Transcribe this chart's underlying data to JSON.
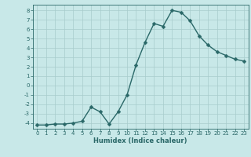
{
  "x": [
    0,
    1,
    2,
    3,
    4,
    5,
    6,
    7,
    8,
    9,
    10,
    11,
    12,
    13,
    14,
    15,
    16,
    17,
    18,
    19,
    20,
    21,
    22,
    23
  ],
  "y": [
    -4.2,
    -4.2,
    -4.1,
    -4.1,
    -4.0,
    -3.8,
    -2.3,
    -2.8,
    -4.1,
    -2.8,
    -1.0,
    2.2,
    4.6,
    6.6,
    6.3,
    8.0,
    7.8,
    6.9,
    5.3,
    4.3,
    3.6,
    3.2,
    2.8,
    2.6
  ],
  "xlabel": "Humidex (Indice chaleur)",
  "bg_color": "#c8e8e8",
  "line_color": "#2a6868",
  "grid_color": "#a8cccc",
  "xlim": [
    -0.5,
    23.5
  ],
  "ylim": [
    -4.6,
    8.6
  ],
  "yticks": [
    -4,
    -3,
    -2,
    -1,
    0,
    1,
    2,
    3,
    4,
    5,
    6,
    7,
    8
  ],
  "xticks": [
    0,
    1,
    2,
    3,
    4,
    5,
    6,
    7,
    8,
    9,
    10,
    11,
    12,
    13,
    14,
    15,
    16,
    17,
    18,
    19,
    20,
    21,
    22,
    23
  ],
  "markersize": 2.5,
  "linewidth": 1.0,
  "tick_fontsize": 5.0,
  "xlabel_fontsize": 6.0
}
